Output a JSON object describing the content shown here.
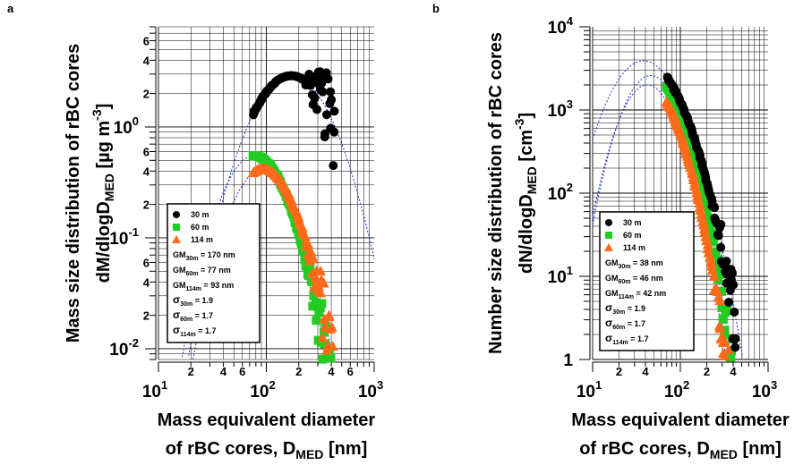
{
  "chart_data": [
    {
      "panel_label": "a",
      "type": "scatter",
      "xlabel_line1": "Mass equivalent diameter",
      "xlabel_line2": "of rBC cores, D",
      "xlabel_sub": "MED",
      "xlabel_tail": " [nm]",
      "ylabel_line1": "Mass size distribution of rBC cores",
      "ylabel_line2": "dM/dlogD",
      "ylabel_sub": "MED",
      "ylabel_tail": " [µg m",
      "ylabel_sup": "-3",
      "ylabel_close": "]",
      "xscale": "log",
      "yscale": "log",
      "xlim": [
        10,
        1000
      ],
      "ylim": [
        0.008,
        8
      ],
      "x_major_ticks": [
        {
          "v": 10,
          "base": "10",
          "exp": "1"
        },
        {
          "v": 100,
          "base": "10",
          "exp": "2"
        },
        {
          "v": 1000,
          "base": "10",
          "exp": "3"
        }
      ],
      "x_minor_labels": [
        {
          "v": 20,
          "t": "2"
        },
        {
          "v": 40,
          "t": "4"
        },
        {
          "v": 60,
          "t": "6"
        },
        {
          "v": 200,
          "t": "2"
        },
        {
          "v": 400,
          "t": "4"
        },
        {
          "v": 600,
          "t": "6"
        }
      ],
      "y_major_ticks": [
        {
          "v": 0.01,
          "base": "10",
          "exp": "-2"
        },
        {
          "v": 0.1,
          "base": "10",
          "exp": "-1"
        },
        {
          "v": 1,
          "t": "10"
        }
      ],
      "y_major_exp0": "0",
      "y_minor_labels": [
        {
          "v": 0.02,
          "t": "2"
        },
        {
          "v": 0.04,
          "t": "4"
        },
        {
          "v": 0.06,
          "t": "6"
        },
        {
          "v": 0.2,
          "t": "2"
        },
        {
          "v": 0.4,
          "t": "4"
        },
        {
          "v": 0.6,
          "t": "6"
        },
        {
          "v": 2,
          "t": "2"
        },
        {
          "v": 4,
          "t": "4"
        },
        {
          "v": 6,
          "t": "6"
        }
      ],
      "series": [
        {
          "name": "30 m",
          "color": "#000000",
          "marker": "circle",
          "gm": 170,
          "sigma": 1.9,
          "amp": 2.9,
          "xmin": 75,
          "xmax": 430
        },
        {
          "name": "60 m",
          "color": "#22cc22",
          "marker": "square",
          "gm": 77,
          "sigma": 1.7,
          "amp": 0.55,
          "xmin": 75,
          "xmax": 420
        },
        {
          "name": "114 m",
          "color": "#ff6a1a",
          "marker": "triangle",
          "gm": 93,
          "sigma": 1.7,
          "amp": 0.42,
          "xmin": 75,
          "xmax": 420
        }
      ],
      "legend_stats": [
        {
          "pre": "GM",
          "sub": "30m",
          "post": " = 170 nm"
        },
        {
          "pre": "GM",
          "sub": "60m",
          "post": " = 77 nm"
        },
        {
          "pre": "GM",
          "sub": "114m",
          "post": " = 93 nm"
        },
        {
          "pre": "σ",
          "sub": "30m",
          "post": " = 1.9"
        },
        {
          "pre": "σ",
          "sub": "60m",
          "post": " = 1.7"
        },
        {
          "pre": "σ",
          "sub": "114m",
          "post": " = 1.7"
        }
      ],
      "legend_placement": "lower-left",
      "grid": true
    },
    {
      "panel_label": "b",
      "type": "scatter",
      "xlabel_line1": "Mass equivalent diameter",
      "xlabel_line2": "of rBC cores, D",
      "xlabel_sub": "MED",
      "xlabel_tail": " [nm]",
      "ylabel_line1": "Number size distribution of rBC cores",
      "ylabel_line2": "dN/dlogD",
      "ylabel_sub": "MED",
      "ylabel_tail": " [cm",
      "ylabel_sup": "-3",
      "ylabel_close": "]",
      "xscale": "log",
      "yscale": "log",
      "xlim": [
        10,
        1000
      ],
      "ylim": [
        1,
        10000
      ],
      "x_major_ticks": [
        {
          "v": 10,
          "base": "10",
          "exp": "1"
        },
        {
          "v": 100,
          "base": "10",
          "exp": "2"
        },
        {
          "v": 1000,
          "base": "10",
          "exp": "3"
        }
      ],
      "x_minor_labels": [
        {
          "v": 20,
          "t": "2"
        },
        {
          "v": 40,
          "t": "4"
        },
        {
          "v": 200,
          "t": "2"
        },
        {
          "v": 400,
          "t": "4"
        }
      ],
      "y_major_ticks": [
        {
          "v": 1,
          "t": "1"
        },
        {
          "v": 10,
          "base": "10",
          "exp": "1"
        },
        {
          "v": 100,
          "base": "10",
          "exp": "2"
        },
        {
          "v": 1000,
          "base": "10",
          "exp": "3"
        },
        {
          "v": 10000,
          "base": "10",
          "exp": "4"
        }
      ],
      "y_minor_labels": [],
      "series": [
        {
          "name": "30 m",
          "color": "#000000",
          "marker": "circle",
          "gm": 38,
          "sigma": 1.9,
          "amp": 3900,
          "xmin": 70,
          "xmax": 430
        },
        {
          "name": "60 m",
          "color": "#22cc22",
          "marker": "square",
          "gm": 46,
          "sigma": 1.7,
          "amp": 2600,
          "xmin": 70,
          "xmax": 420
        },
        {
          "name": "114 m",
          "color": "#ff6a1a",
          "marker": "triangle",
          "gm": 42,
          "sigma": 1.7,
          "amp": 2000,
          "xmin": 70,
          "xmax": 420
        }
      ],
      "legend_stats": [
        {
          "pre": "GM",
          "sub": "30m",
          "post": " = 38 nm"
        },
        {
          "pre": "GM",
          "sub": "60m",
          "post": " = 46 nm"
        },
        {
          "pre": "GM",
          "sub": "114m",
          "post": " = 42 nm"
        },
        {
          "pre": "σ",
          "sub": "30m",
          "post": " = 1.9"
        },
        {
          "pre": "σ",
          "sub": "60m",
          "post": " = 1.7"
        },
        {
          "pre": "σ",
          "sub": "114m",
          "post": " = 1.7"
        }
      ],
      "legend_placement": "lower-left",
      "grid": true
    }
  ],
  "colors": {
    "fit_line": "#2233cc",
    "grid": "#000000"
  }
}
